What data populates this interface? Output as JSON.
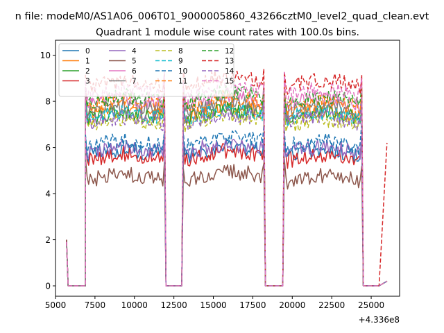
{
  "chart_data": {
    "type": "line",
    "suptitle": "n file: modeM0/AS1A06_006T01_9000005860_43266cztM0_level2_quad_clean.evt",
    "title": "Quadrant 1 module wise count rates with 100.0s bins.",
    "xlabel": "",
    "ylabel": "",
    "x_offset_label": "+4.336e8",
    "xlim": [
      5000,
      26800
    ],
    "ylim": [
      -0.45,
      10.65
    ],
    "x_ticks": [
      5000,
      7500,
      10000,
      12500,
      15000,
      17500,
      20000,
      22500,
      25000
    ],
    "x_tick_labels": [
      "5000",
      "7500",
      "10000",
      "12500",
      "15000",
      "17500",
      "20000",
      "22500",
      "25000"
    ],
    "y_ticks": [
      0,
      2,
      4,
      6,
      8,
      10
    ],
    "y_tick_labels": [
      "0",
      "2",
      "4",
      "6",
      "8",
      "10"
    ],
    "grid": false,
    "legend_placement": "top-left",
    "legend_columns": 4,
    "bin_seconds": 100,
    "segments": [
      {
        "start": 5700,
        "end": 11900
      },
      {
        "start": 13100,
        "end": 18200
      },
      {
        "start": 19500,
        "end": 24400
      },
      {
        "start": 25600,
        "end": 26000
      }
    ],
    "gaps": [
      {
        "start": 5800,
        "end": 6900
      },
      {
        "start": 12000,
        "end": 13000
      },
      {
        "start": 18300,
        "end": 19400
      },
      {
        "start": 24500,
        "end": 25500
      }
    ],
    "series": [
      {
        "name": "0",
        "color": "#1f77b4",
        "dash": "solid",
        "level": 5.6,
        "start_value": 2.0,
        "end_value": 0.2
      },
      {
        "name": "1",
        "color": "#ff7f0e",
        "dash": "solid",
        "level": 7.3,
        "start_value": 1.9,
        "end_value": 0.2
      },
      {
        "name": "2",
        "color": "#2ca02c",
        "dash": "solid",
        "level": 7.2,
        "start_value": 1.9,
        "end_value": 0.2
      },
      {
        "name": "3",
        "color": "#d62728",
        "dash": "solid",
        "level": 5.4,
        "start_value": 2.0,
        "end_value": 0.2
      },
      {
        "name": "4",
        "color": "#9467bd",
        "dash": "solid",
        "level": 5.7,
        "start_value": 1.9,
        "end_value": 0.2
      },
      {
        "name": "5",
        "color": "#8c564b",
        "dash": "solid",
        "level": 4.5,
        "start_value": 2.0,
        "end_value": 0.2
      },
      {
        "name": "6",
        "color": "#e377c2",
        "dash": "solid",
        "level": 7.8,
        "start_value": 1.9,
        "end_value": 0.2
      },
      {
        "name": "7",
        "color": "#7f7f7f",
        "dash": "solid",
        "level": 7.5,
        "start_value": 1.9,
        "end_value": 0.2
      },
      {
        "name": "8",
        "color": "#bcbd22",
        "dash": "dashed",
        "level": 6.9,
        "start_value": 1.9,
        "end_value": 0.2
      },
      {
        "name": "9",
        "color": "#17becf",
        "dash": "dashed",
        "level": 7.2,
        "start_value": 1.9,
        "end_value": 0.2
      },
      {
        "name": "10",
        "color": "#1f77b4",
        "dash": "dashed",
        "level": 6.0,
        "start_value": 1.9,
        "end_value": 0.2
      },
      {
        "name": "11",
        "color": "#ff7f0e",
        "dash": "dashed",
        "level": 7.7,
        "start_value": 1.9,
        "end_value": 0.2
      },
      {
        "name": "12",
        "color": "#2ca02c",
        "dash": "dashed",
        "level": 7.9,
        "start_value": 1.9,
        "end_value": 0.2
      },
      {
        "name": "13",
        "color": "#d62728",
        "dash": "dashed",
        "level": 8.6,
        "start_value": 1.9,
        "end_value": 6.2
      },
      {
        "name": "14",
        "color": "#9467bd",
        "dash": "dashed",
        "level": 7.0,
        "start_value": 1.9,
        "end_value": 0.2
      },
      {
        "name": "15",
        "color": "#e377c2",
        "dash": "dashed",
        "level": 8.2,
        "start_value": 1.9,
        "end_value": 0.2
      }
    ]
  }
}
